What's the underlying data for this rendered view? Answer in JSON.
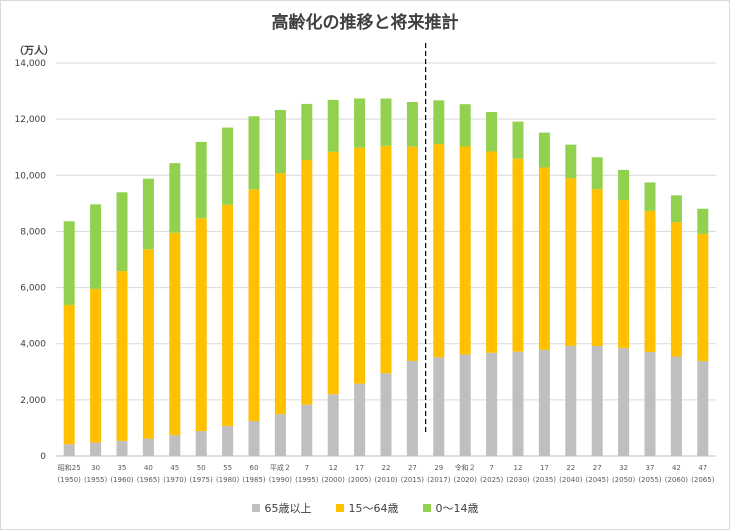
{
  "chart_data": {
    "type": "bar",
    "stacked": true,
    "title": "高齢化の推移と将来推計",
    "ylabel": "（万人）",
    "ylim": [
      0,
      14000
    ],
    "yticks": [
      "0",
      "2,000",
      "4,000",
      "6,000",
      "8,000",
      "10,000",
      "12,000",
      "14,000"
    ],
    "grid": true,
    "legend_position": "bottom",
    "categories": [
      {
        "top": "昭和25",
        "bottom": "(1950)"
      },
      {
        "top": "30",
        "bottom": "(1955)"
      },
      {
        "top": "35",
        "bottom": "(1960)"
      },
      {
        "top": "40",
        "bottom": "(1965)"
      },
      {
        "top": "45",
        "bottom": "(1970)"
      },
      {
        "top": "50",
        "bottom": "(1975)"
      },
      {
        "top": "55",
        "bottom": "(1980)"
      },
      {
        "top": "60",
        "bottom": "(1985)"
      },
      {
        "top": "平成２",
        "bottom": "(1990)"
      },
      {
        "top": "7",
        "bottom": "(1995)"
      },
      {
        "top": "12",
        "bottom": "(2000)"
      },
      {
        "top": "17",
        "bottom": "(2005)"
      },
      {
        "top": "22",
        "bottom": "(2010)"
      },
      {
        "top": "27",
        "bottom": "(2015)"
      },
      {
        "top": "29",
        "bottom": "(2017)"
      },
      {
        "top": "令和２",
        "bottom": "(2020)"
      },
      {
        "top": "7",
        "bottom": "(2025)"
      },
      {
        "top": "12",
        "bottom": "(2030)"
      },
      {
        "top": "17",
        "bottom": "(2035)"
      },
      {
        "top": "22",
        "bottom": "(2040)"
      },
      {
        "top": "27",
        "bottom": "(2045)"
      },
      {
        "top": "32",
        "bottom": "(2050)"
      },
      {
        "top": "37",
        "bottom": "(2055)"
      },
      {
        "top": "42",
        "bottom": "(2060)"
      },
      {
        "top": "47",
        "bottom": "(2065)"
      }
    ],
    "series": [
      {
        "name": "65歳以上",
        "color": "#bfbfbf",
        "values": [
          416,
          479,
          540,
          618,
          739,
          887,
          1065,
          1247,
          1489,
          1826,
          2201,
          2576,
          2948,
          3387,
          3515,
          3619,
          3677,
          3716,
          3782,
          3921,
          3919,
          3841,
          3704,
          3540,
          3381
        ]
      },
      {
        "name": "15～64歳",
        "color": "#ffc000",
        "values": [
          4966,
          5473,
          6047,
          6744,
          7212,
          7581,
          7883,
          8251,
          8590,
          8716,
          8638,
          8409,
          8103,
          7629,
          7596,
          7406,
          7170,
          6875,
          6494,
          5978,
          5584,
          5275,
          5028,
          4793,
          4529
        ]
      },
      {
        "name": "0～14歳",
        "color": "#92d050",
        "values": [
          2979,
          3012,
          2807,
          2517,
          2482,
          2722,
          2751,
          2603,
          2249,
          2001,
          1847,
          1752,
          1684,
          1595,
          1559,
          1507,
          1407,
          1321,
          1246,
          1194,
          1138,
          1077,
          1012,
          951,
          898
        ]
      }
    ],
    "divider_after_index": 13
  }
}
